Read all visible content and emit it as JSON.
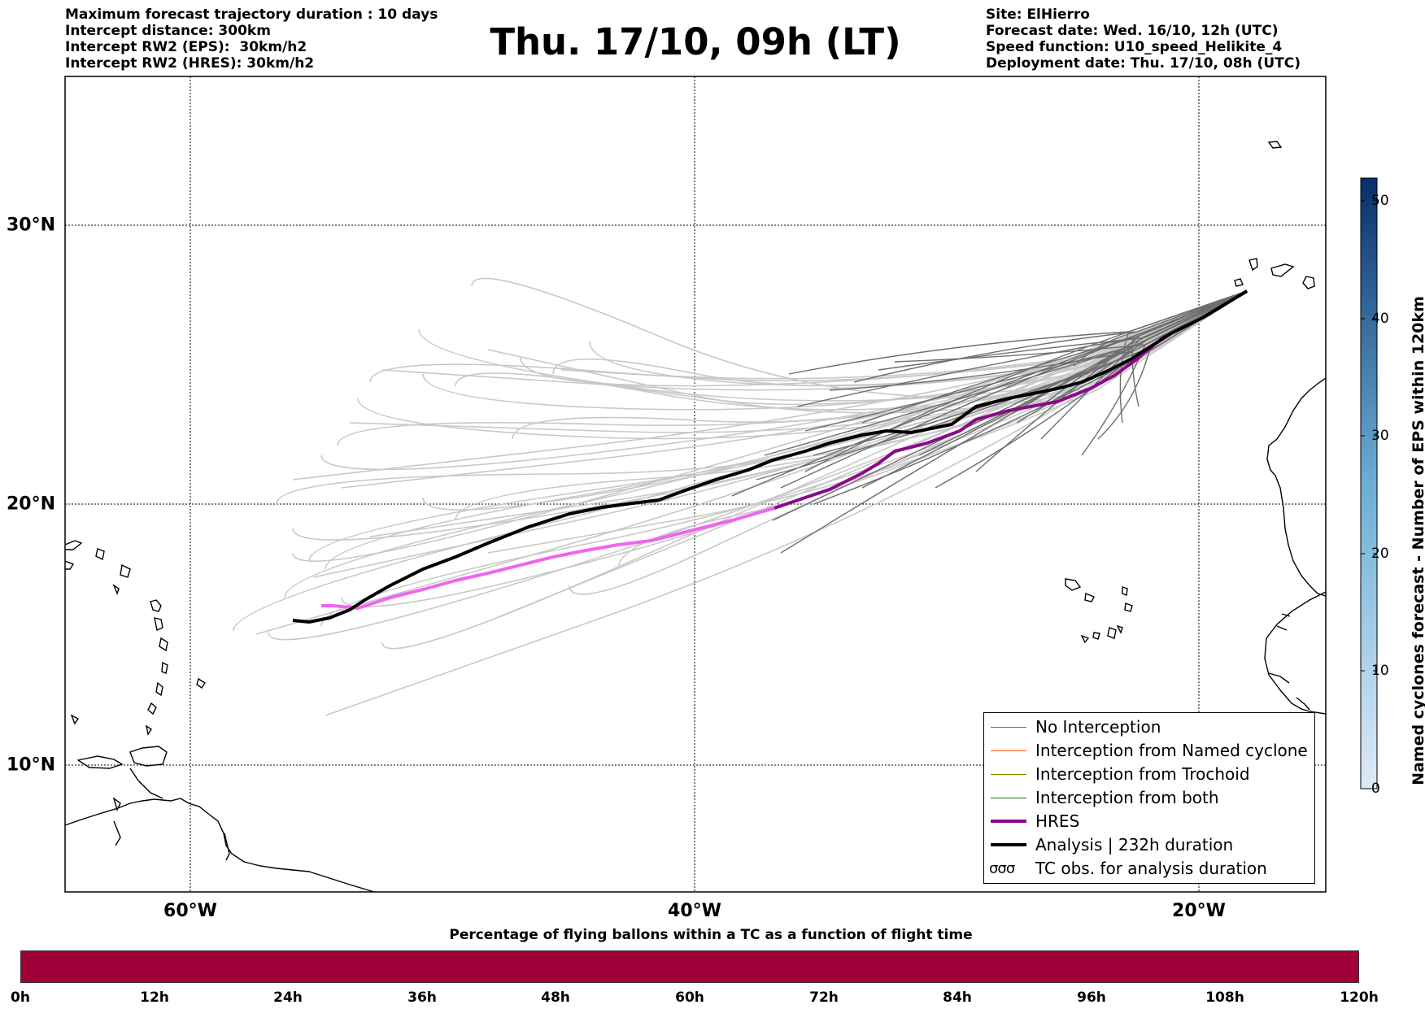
{
  "header": {
    "left_lines": [
      "Maximum forecast trajectory duration : 10 days",
      "Intercept distance: 300km",
      "Intercept RW2 (EPS):  30km/h2",
      "Intercept RW2 (HRES): 30km/h2"
    ],
    "title": "Thu. 17/10, 09h (LT)",
    "right_lines": [
      "Site: ElHierro",
      "Forecast date: Wed. 16/10, 12h (UTC)",
      "Speed function: U10_speed_Helikite_4",
      "Deployment date: Thu. 17/10, 08h (UTC)"
    ]
  },
  "map": {
    "lat_labels": [
      "30°N",
      "20°N",
      "10°N"
    ],
    "lon_labels": [
      "60°W",
      "40°W",
      "20°W"
    ],
    "colors": {
      "no_interception": "#6e6e6e",
      "ensemble_far": "#c8c8c8",
      "hres": "#8a0a8a",
      "hres_extension": "#ee66ee",
      "analysis": "#000000",
      "named_cyclone": "#ff5500",
      "trochoid": "#808000",
      "both": "#008000"
    }
  },
  "legend": {
    "items": [
      {
        "label": "No Interception",
        "color": "#6e6e6e",
        "width": 1.2
      },
      {
        "label": "Interception from Named cyclone",
        "color": "#ff5500",
        "width": 1.2
      },
      {
        "label": "Interception from Trochoid",
        "color": "#808000",
        "width": 1.2
      },
      {
        "label": "Interception from both",
        "color": "#008000",
        "width": 1.2
      },
      {
        "label": "HRES",
        "color": "#8a0a8a",
        "width": 4
      },
      {
        "label": "Analysis | 232h duration",
        "color": "#000000",
        "width": 4
      }
    ],
    "tc_symbol": "σσσ",
    "tc_label": "TC obs. for analysis duration"
  },
  "colorbar": {
    "label": "Named cyclones forecast - Number of EPS within 120km",
    "ticks": [
      "50",
      "40",
      "30",
      "20",
      "10",
      "0"
    ],
    "color_top": "#08306b",
    "color_bottom": "#deebf7"
  },
  "flight_bar": {
    "title": "Percentage of flying ballons within a TC as a function of flight time",
    "color": "#a0003a",
    "ticks": [
      "0h",
      "12h",
      "24h",
      "36h",
      "48h",
      "60h",
      "72h",
      "84h",
      "96h",
      "108h",
      "120h"
    ]
  }
}
